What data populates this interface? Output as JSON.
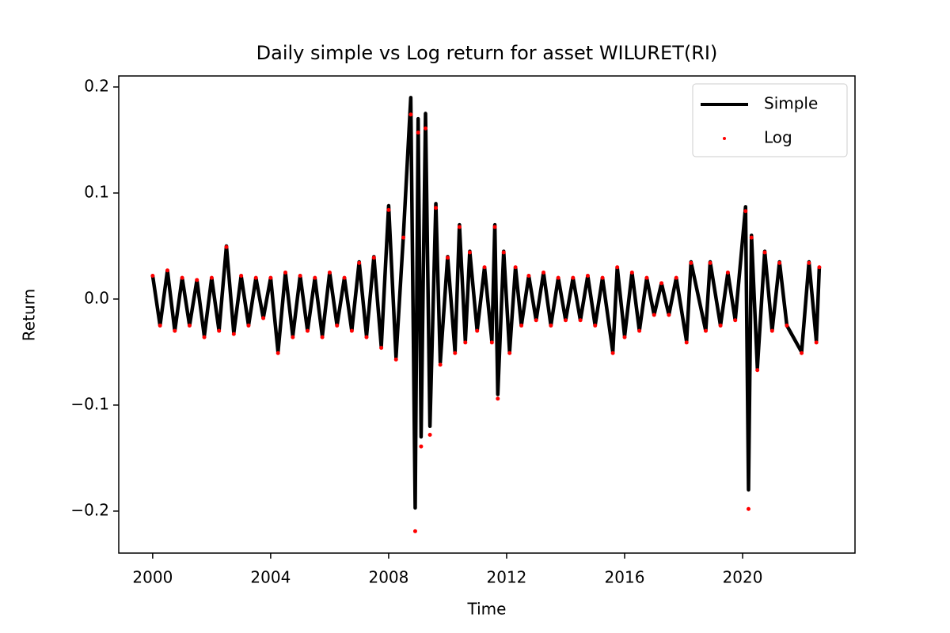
{
  "chart_data": {
    "type": "line",
    "title": "Daily simple vs Log return for asset WILURET(RI)",
    "x_label": "Time",
    "y_label": "Return",
    "legend": "upper right",
    "xlim": [
      1998.85,
      2023.81
    ],
    "ylim": [
      -0.2396,
      0.2104
    ],
    "xticks": [
      2000,
      2004,
      2008,
      2012,
      2016,
      2020
    ],
    "yticks": [
      {
        "value": -0.2,
        "label": "−0.2"
      },
      {
        "value": -0.1,
        "label": "−0.1"
      },
      {
        "value": 0,
        "label": "0.0"
      },
      0.1,
      0.2
    ],
    "x": [
      2000.0,
      2000.25,
      2000.5,
      2000.75,
      2001.0,
      2001.25,
      2001.5,
      2001.75,
      2002.0,
      2002.25,
      2002.5,
      2002.75,
      2003.0,
      2003.25,
      2003.5,
      2003.75,
      2004.0,
      2004.25,
      2004.5,
      2004.75,
      2005.0,
      2005.25,
      2005.5,
      2005.75,
      2006.0,
      2006.25,
      2006.5,
      2006.75,
      2007.0,
      2007.25,
      2007.5,
      2007.75,
      2008.0,
      2008.25,
      2008.5,
      2008.75,
      2008.9,
      2009.0,
      2009.1,
      2009.25,
      2009.4,
      2009.6,
      2009.75,
      2010.0,
      2010.25,
      2010.4,
      2010.6,
      2010.75,
      2011.0,
      2011.25,
      2011.5,
      2011.6,
      2011.7,
      2011.9,
      2012.1,
      2012.3,
      2012.5,
      2012.75,
      2013.0,
      2013.25,
      2013.5,
      2013.75,
      2014.0,
      2014.25,
      2014.5,
      2014.75,
      2015.0,
      2015.25,
      2015.6,
      2015.75,
      2016.0,
      2016.25,
      2016.5,
      2016.75,
      2017.0,
      2017.25,
      2017.5,
      2017.75,
      2018.1,
      2018.25,
      2018.75,
      2018.9,
      2019.25,
      2019.5,
      2019.75,
      2020.1,
      2020.2,
      2020.3,
      2020.5,
      2020.75,
      2021.0,
      2021.25,
      2021.5,
      2022.0,
      2022.25,
      2022.5,
      2022.6
    ],
    "series": [
      {
        "name": "Simple",
        "color": "#000000",
        "mode": "line",
        "values": [
          0.022,
          -0.025,
          0.027,
          -0.03,
          0.02,
          -0.025,
          0.018,
          -0.035,
          0.02,
          -0.03,
          0.05,
          -0.032,
          0.022,
          -0.025,
          0.02,
          -0.018,
          0.02,
          -0.05,
          0.025,
          -0.035,
          0.022,
          -0.03,
          0.02,
          -0.035,
          0.025,
          -0.025,
          0.02,
          -0.03,
          0.035,
          -0.035,
          0.04,
          -0.045,
          0.088,
          -0.055,
          0.06,
          0.19,
          -0.197,
          0.17,
          -0.13,
          0.175,
          -0.12,
          0.09,
          -0.06,
          0.04,
          -0.05,
          0.07,
          -0.04,
          0.045,
          -0.03,
          0.03,
          -0.04,
          0.07,
          -0.09,
          0.045,
          -0.05,
          0.03,
          -0.025,
          0.022,
          -0.02,
          0.025,
          -0.025,
          0.02,
          -0.02,
          0.02,
          -0.02,
          0.022,
          -0.025,
          0.02,
          -0.05,
          0.03,
          -0.035,
          0.025,
          -0.03,
          0.02,
          -0.015,
          0.015,
          -0.015,
          0.02,
          -0.04,
          0.035,
          -0.03,
          0.035,
          -0.025,
          0.025,
          -0.02,
          0.087,
          -0.18,
          0.06,
          -0.065,
          0.045,
          -0.03,
          0.035,
          -0.025,
          -0.05,
          0.035,
          -0.04,
          0.03
        ]
      },
      {
        "name": "Log",
        "color": "#ff0000",
        "mode": "markers",
        "values": [
          0.022,
          -0.025,
          0.027,
          -0.03,
          0.02,
          -0.025,
          0.018,
          -0.036,
          0.02,
          -0.03,
          0.049,
          -0.033,
          0.022,
          -0.025,
          0.02,
          -0.018,
          0.02,
          -0.051,
          0.025,
          -0.036,
          0.022,
          -0.03,
          0.02,
          -0.036,
          0.025,
          -0.025,
          0.02,
          -0.03,
          0.034,
          -0.036,
          0.039,
          -0.046,
          0.084,
          -0.057,
          0.058,
          0.174,
          -0.219,
          0.157,
          -0.139,
          0.161,
          -0.128,
          0.086,
          -0.062,
          0.039,
          -0.051,
          0.068,
          -0.041,
          0.044,
          -0.03,
          0.03,
          -0.041,
          0.068,
          -0.094,
          0.044,
          -0.051,
          0.03,
          -0.025,
          0.022,
          -0.02,
          0.025,
          -0.025,
          0.02,
          -0.02,
          0.02,
          -0.02,
          0.022,
          -0.025,
          0.02,
          -0.051,
          0.03,
          -0.036,
          0.025,
          -0.03,
          0.02,
          -0.015,
          0.015,
          -0.015,
          0.02,
          -0.041,
          0.034,
          -0.03,
          0.034,
          -0.025,
          0.025,
          -0.02,
          0.083,
          -0.198,
          0.058,
          -0.067,
          0.044,
          -0.03,
          0.034,
          -0.025,
          -0.051,
          0.034,
          -0.041,
          0.03
        ]
      }
    ]
  }
}
